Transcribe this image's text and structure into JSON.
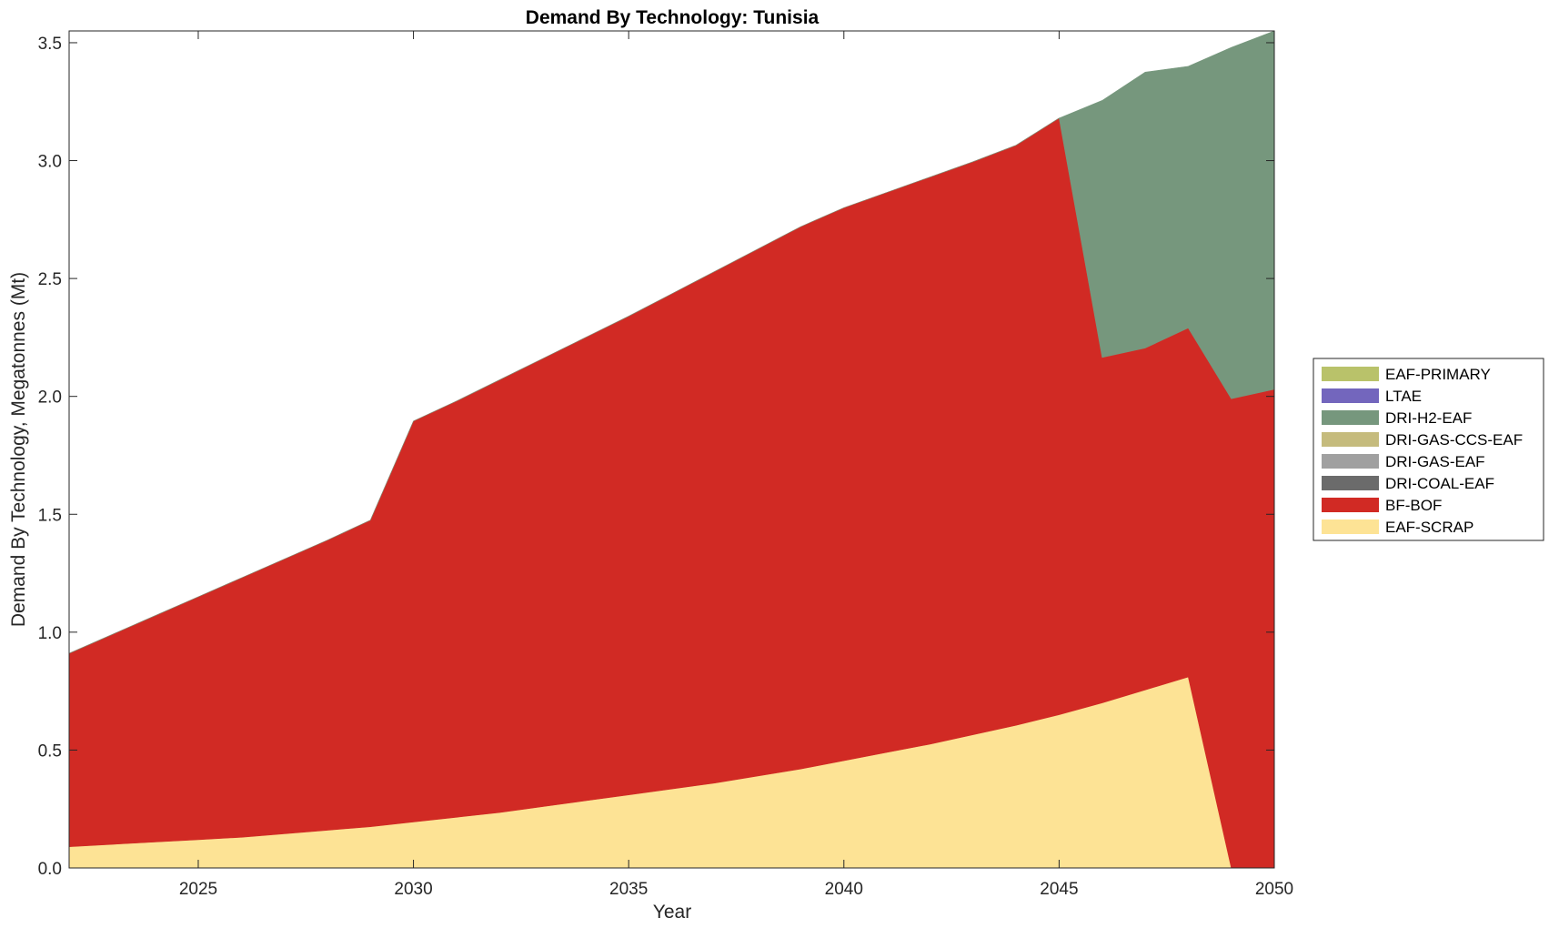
{
  "chart_data": {
    "type": "area",
    "stacked": true,
    "title": "Demand By Technology: Tunisia",
    "xlabel": "Year",
    "ylabel": "Demand By Technology, Megatonnes (Mt)",
    "xlim": [
      2022,
      2050
    ],
    "ylim": [
      0,
      3.55
    ],
    "x_ticks": [
      2025,
      2030,
      2035,
      2040,
      2045,
      2050
    ],
    "y_ticks": [
      0.0,
      0.5,
      1.0,
      1.5,
      2.0,
      2.5,
      3.0,
      3.5
    ],
    "y_tick_labels": [
      "0.0",
      "0.5",
      "1.0",
      "1.5",
      "2.0",
      "2.5",
      "3.0",
      "3.5"
    ],
    "grid": false,
    "legend_position": "outside-right",
    "x": [
      2022,
      2023,
      2024,
      2025,
      2026,
      2027,
      2028,
      2029,
      2030,
      2031,
      2032,
      2033,
      2034,
      2035,
      2036,
      2037,
      2038,
      2039,
      2040,
      2041,
      2042,
      2043,
      2044,
      2045,
      2046,
      2047,
      2048,
      2049,
      2050
    ],
    "series": [
      {
        "name": "EAF-SCRAP",
        "color": "#FDE395",
        "values": [
          0.09,
          0.1,
          0.11,
          0.12,
          0.13,
          0.145,
          0.16,
          0.175,
          0.195,
          0.215,
          0.235,
          0.26,
          0.285,
          0.31,
          0.335,
          0.36,
          0.39,
          0.42,
          0.455,
          0.49,
          0.525,
          0.565,
          0.605,
          0.65,
          0.7,
          0.755,
          0.81,
          0.0,
          0.0
        ]
      },
      {
        "name": "BF-BOF",
        "color": "#D12A24",
        "values": [
          0.82,
          0.89,
          0.96,
          1.03,
          1.1,
          1.165,
          1.23,
          1.3,
          1.7,
          1.765,
          1.835,
          1.9,
          1.965,
          2.03,
          2.1,
          2.17,
          2.235,
          2.3,
          2.345,
          2.375,
          2.405,
          2.43,
          2.46,
          2.53,
          1.465,
          1.45,
          1.48,
          1.99,
          2.03
        ]
      },
      {
        "name": "DRI-COAL-EAF",
        "color": "#6B6B6B",
        "values": [
          0,
          0,
          0,
          0,
          0,
          0,
          0,
          0,
          0,
          0,
          0,
          0,
          0,
          0,
          0,
          0,
          0,
          0,
          0,
          0,
          0,
          0,
          0,
          0,
          0,
          0,
          0,
          0,
          0
        ]
      },
      {
        "name": "DRI-GAS-EAF",
        "color": "#A0A0A0",
        "values": [
          0,
          0,
          0,
          0,
          0,
          0,
          0,
          0,
          0,
          0,
          0,
          0,
          0,
          0,
          0,
          0,
          0,
          0,
          0,
          0,
          0,
          0,
          0,
          0,
          0,
          0,
          0,
          0,
          0
        ]
      },
      {
        "name": "DRI-GAS-CCS-EAF",
        "color": "#C5BB7D",
        "values": [
          0,
          0,
          0,
          0,
          0,
          0,
          0,
          0,
          0,
          0,
          0,
          0,
          0,
          0,
          0,
          0,
          0,
          0,
          0,
          0,
          0,
          0,
          0,
          0,
          0,
          0,
          0,
          0,
          0
        ]
      },
      {
        "name": "DRI-H2-EAF",
        "color": "#76977D",
        "values": [
          0,
          0,
          0,
          0,
          0,
          0,
          0,
          0,
          0,
          0,
          0,
          0,
          0,
          0,
          0,
          0,
          0,
          0,
          0,
          0,
          0,
          0,
          0,
          0,
          1.09,
          1.17,
          1.11,
          1.49,
          1.52
        ]
      },
      {
        "name": "LTAE",
        "color": "#7366BD",
        "values": [
          0,
          0,
          0,
          0,
          0,
          0,
          0,
          0,
          0,
          0,
          0,
          0,
          0,
          0,
          0,
          0,
          0,
          0,
          0,
          0,
          0,
          0,
          0,
          0,
          0,
          0,
          0,
          0,
          0
        ]
      },
      {
        "name": "EAF-PRIMARY",
        "color": "#B9C26A",
        "values": [
          0,
          0,
          0,
          0,
          0,
          0,
          0,
          0,
          0,
          0,
          0,
          0,
          0,
          0,
          0,
          0,
          0,
          0,
          0,
          0,
          0,
          0,
          0,
          0,
          0,
          0,
          0,
          0,
          0
        ]
      }
    ],
    "legend_order": [
      "EAF-PRIMARY",
      "LTAE",
      "DRI-H2-EAF",
      "DRI-GAS-CCS-EAF",
      "DRI-GAS-EAF",
      "DRI-COAL-EAF",
      "BF-BOF",
      "EAF-SCRAP"
    ]
  }
}
